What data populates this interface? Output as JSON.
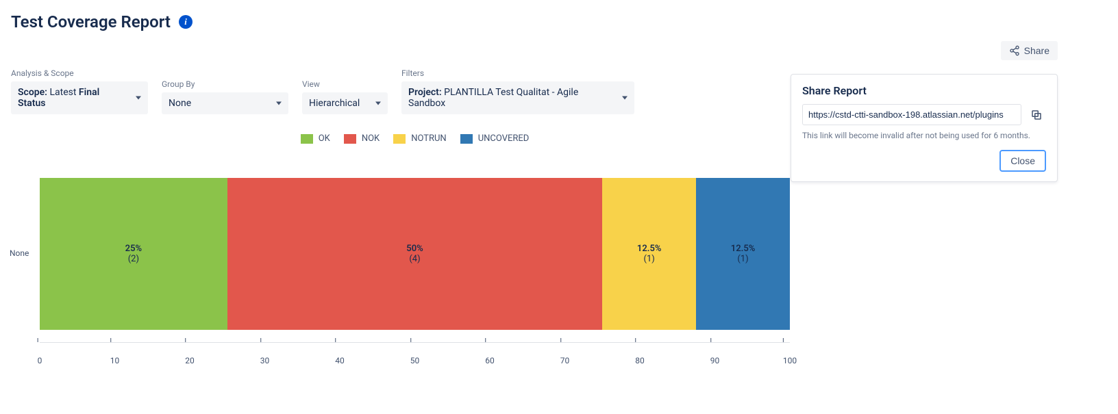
{
  "page_title": "Test Coverage Report",
  "share_button_label": "Share",
  "filters": {
    "analysis_scope": {
      "label": "Analysis & Scope",
      "prefix": "Scope: ",
      "value_light": "Latest ",
      "value_bold": "Final Status"
    },
    "group_by": {
      "label": "Group By",
      "value": "None"
    },
    "view": {
      "label": "View",
      "value": "Hierarchical"
    },
    "filters": {
      "label": "Filters",
      "prefix_bold": "Project: ",
      "value": "PLANTILLA Test Qualitat - Agile Sandbox"
    }
  },
  "share_panel": {
    "title": "Share Report",
    "url": "https://cstd-ctti-sandbox-198.atlassian.net/plugins",
    "note": "This link will become invalid after not being used for 6 months.",
    "close_label": "Close"
  },
  "chart": {
    "type": "stacked-bar-horizontal",
    "y_category": "None",
    "legend": [
      {
        "label": "OK",
        "color": "#8bc34a"
      },
      {
        "label": "NOK",
        "color": "#e2574c"
      },
      {
        "label": "NOTRUN",
        "color": "#f8d24a"
      },
      {
        "label": "UNCOVERED",
        "color": "#3178b3"
      }
    ],
    "segments": [
      {
        "percent": 25,
        "pct_label": "25%",
        "count_label": "(2)",
        "color": "#8bc34a"
      },
      {
        "percent": 50,
        "pct_label": "50%",
        "count_label": "(4)",
        "color": "#e2574c"
      },
      {
        "percent": 12.5,
        "pct_label": "12.5%",
        "count_label": "(1)",
        "color": "#f8d24a"
      },
      {
        "percent": 12.5,
        "pct_label": "12.5%",
        "count_label": "(1)",
        "color": "#3178b3"
      }
    ],
    "xaxis": {
      "min": 0,
      "max": 100,
      "step": 10,
      "ticks": [
        0,
        10,
        20,
        30,
        40,
        50,
        60,
        70,
        80,
        90,
        100
      ]
    },
    "label_fontsize": 13,
    "background_color": "#ffffff"
  }
}
